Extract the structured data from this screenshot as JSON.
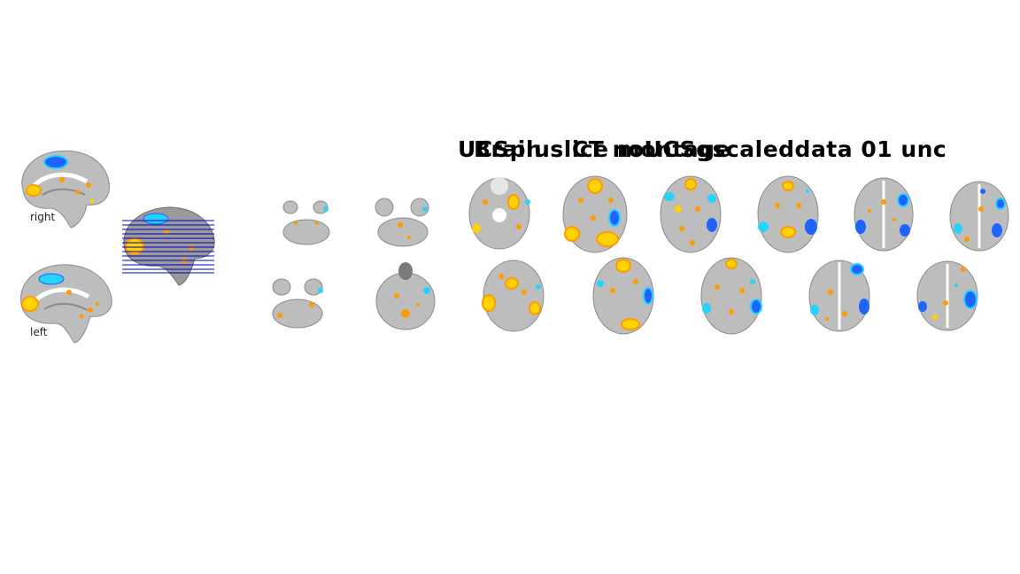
{
  "figure": {
    "title_layer_1": "UCSplus CT noUCSgscaleddata 01 unc",
    "title_layer_2": "Brain slice montage"
  },
  "sagittal_labels": {
    "right": "right",
    "left": "left"
  },
  "colors": {
    "background": "#ffffff",
    "brain_gray": "#bdbdbd",
    "brain_dark": "#7a7a7a",
    "activation_positive_hot": "#ffd200",
    "activation_positive": "#ff9a00",
    "activation_negative": "#1e64ff",
    "activation_negative_light": "#27d2ff",
    "slice_lines": "#0000c8"
  },
  "axial_rows": {
    "top_row_count": 8,
    "bottom_row_count": 7
  }
}
